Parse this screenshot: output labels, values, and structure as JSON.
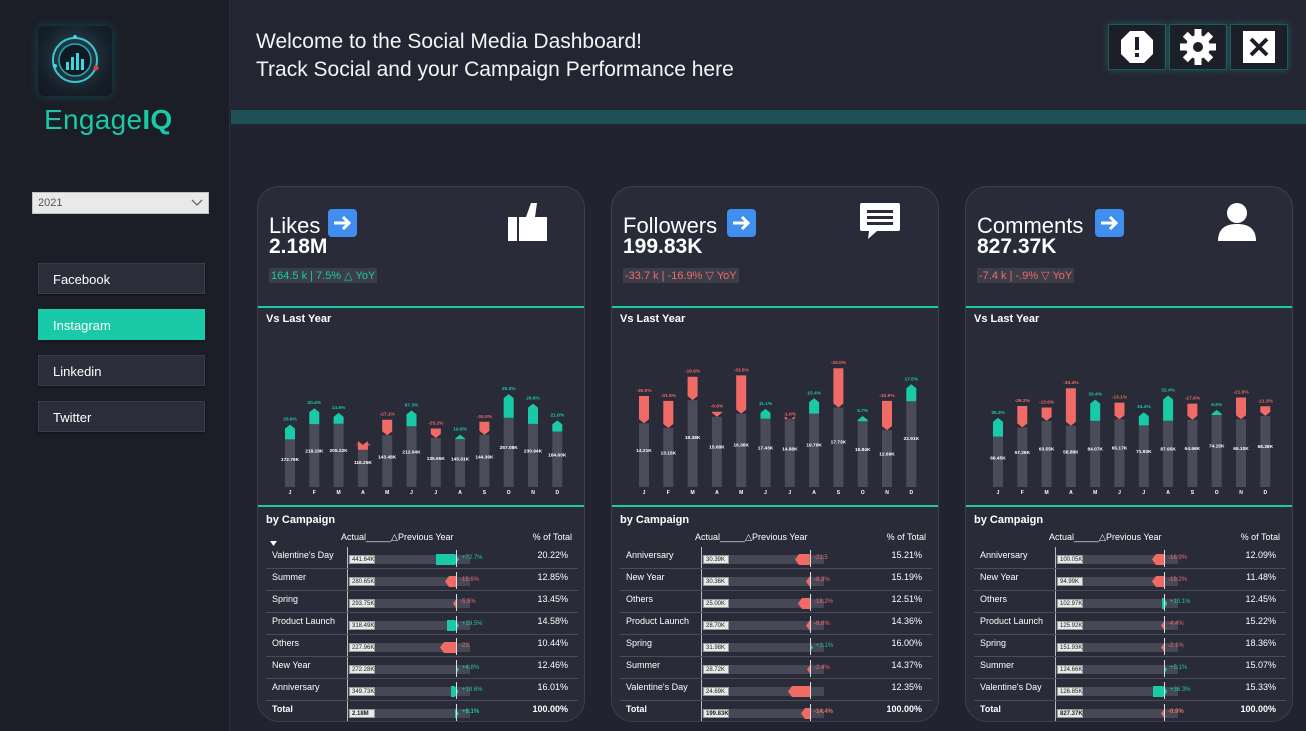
{
  "app": {
    "brand_prefix": "Engage",
    "brand_suffix": "IQ",
    "logo_icon": "analytics-gauge-icon"
  },
  "sidebar": {
    "year_select": {
      "value": "2021"
    },
    "platforms": [
      {
        "label": "Facebook",
        "active": false
      },
      {
        "label": "Instagram",
        "active": true
      },
      {
        "label": "Linkedin",
        "active": false
      },
      {
        "label": "Twitter",
        "active": false
      }
    ]
  },
  "header": {
    "line1": "Welcome to the Social Media Dashboard!",
    "line2": "Track Social and your Campaign Performance here",
    "buttons": [
      {
        "icon": "alert-icon"
      },
      {
        "icon": "gear-icon"
      },
      {
        "icon": "close-icon"
      }
    ]
  },
  "colors": {
    "accent": "#19c9a8",
    "negative": "#f06a66",
    "positive": "#19c9a8",
    "bar_base": "#4a4c59",
    "arrow": "#3f8ef0"
  },
  "cards": [
    {
      "title": "Likes",
      "value": "2.18M",
      "change": "164.5 k | 7.5% △ YoY",
      "change_positive": true,
      "icon": "thumbs-up-icon",
      "vs_title": "Vs Last Year",
      "campaign_title": "by Campaign",
      "table_headers": {
        "actual": "Actual",
        "prev": "△Previous Year",
        "pct": "% of Total"
      },
      "chart_data": {
        "type": "bar",
        "categories": [
          "J",
          "F",
          "M",
          "A",
          "M",
          "J",
          "J",
          "A",
          "S",
          "O",
          "N",
          "D"
        ],
        "series": [
          {
            "values": [
              172.79,
              218.18,
              205.22,
              116.25,
              143.48,
              212.04,
              135.65,
              145.01,
              144.36,
              257.08,
              230.94,
              184.6
            ]
          },
          {
            "values": [
              213.7,
              262.2,
              235.2,
              103.0,
              186.4,
              255.8,
              162.0,
              157.4,
              180.6,
              322.4,
              287.0,
              215.4
            ]
          }
        ],
        "value_labels": [
          "172.79K",
          "218.18K",
          "205.22K",
          "116.25K",
          "143.48K",
          "212.04K",
          "135.65K",
          "145.01K",
          "144.36K",
          "257.08K",
          "230.94K",
          "184.60K"
        ],
        "delta_labels": [
          "20.9%",
          "20.4%",
          "14.6%",
          "-11.4%",
          "-27.1%",
          "67.3%",
          "-25.2%",
          "19.8%",
          "-24.0%",
          "25.3%",
          "29.8%",
          "21.8%"
        ],
        "delta_positive": [
          true,
          true,
          true,
          false,
          false,
          true,
          false,
          true,
          false,
          true,
          true,
          true
        ],
        "ylim": [
          0,
          360
        ]
      },
      "campaigns": [
        {
          "name": "Valentine's Day",
          "actual": "441.64K",
          "delta": "+72.7%",
          "pct": "20.22%",
          "pos": true,
          "size": 0.42
        },
        {
          "name": "Summer",
          "actual": "280.65K",
          "delta": "-15.6%",
          "pct": "12.85%",
          "pos": false,
          "size": 0.2
        },
        {
          "name": "Spring",
          "actual": "293.75K",
          "delta": "-5.5%",
          "pct": "13.45%",
          "pos": false,
          "size": 0.06
        },
        {
          "name": "Product Launch",
          "actual": "318.49K",
          "delta": "+29.5%",
          "pct": "14.58%",
          "pos": true,
          "size": 0.22
        },
        {
          "name": "Others",
          "actual": "227.96K",
          "delta": "-23.",
          "pct": "10.44%",
          "pos": false,
          "size": 0.3
        },
        {
          "name": "New Year",
          "actual": "272.28K",
          "delta": "+4.8%",
          "pct": "12.46%",
          "pos": true,
          "size": 0.04
        },
        {
          "name": "Anniversary",
          "actual": "349.73K",
          "delta": "+18.6%",
          "pct": "16.01%",
          "pos": true,
          "size": 0.14
        },
        {
          "name": "Total",
          "actual": "2.18M",
          "delta": "+8.1%",
          "pct": "100.00%",
          "pos": true,
          "size": 0.07,
          "total": true
        }
      ]
    },
    {
      "title": "Followers",
      "value": "199.83K",
      "change": "-33.7 k | -16.9% ▽ YoY",
      "change_positive": false,
      "icon": "chat-bubble-icon",
      "vs_title": "Vs Last Year",
      "campaign_title": "by Campaign",
      "table_headers": {
        "actual": "Actual",
        "prev": "△Previous Year",
        "pct": "% of Total"
      },
      "chart_data": {
        "type": "bar",
        "categories": [
          "J",
          "F",
          "M",
          "A",
          "M",
          "J",
          "J",
          "A",
          "S",
          "O",
          "N",
          "D"
        ],
        "series": [
          {
            "values": [
              14.21,
              13.15,
              19.38,
              15.68,
              16.36,
              17.43,
              14.88,
              19.79,
              17.73,
              15.84,
              12.69,
              22.91
            ]
          },
          {
            "values": [
              20.3,
              19.2,
              24.6,
              16.8,
              24.9,
              19.6,
              15.1,
              23.2,
              26.5,
              17.0,
              19.2,
              26.7
            ]
          }
        ],
        "value_labels": [
          "14.21K",
          "13.15K",
          "19.38K",
          "15.68K",
          "16.36K",
          "17.43K",
          "14.88K",
          "19.79K",
          "17.73K",
          "15.84K",
          "12.69K",
          "22.91K"
        ],
        "delta_labels": [
          "-30.0%",
          "-31.5%",
          "-19.6%",
          "-6.6%",
          "-33.5%",
          "11.1%",
          "-1.6%",
          "15.4%",
          "-33.0%",
          "6.7%",
          "-32.9%",
          "17.5%"
        ],
        "delta_positive": [
          false,
          false,
          false,
          false,
          false,
          true,
          false,
          true,
          false,
          true,
          false,
          true
        ],
        "ylim": [
          0,
          29
        ]
      },
      "campaigns": [
        {
          "name": "Anniversary",
          "actual": "30.39K",
          "delta": "-21.5",
          "pct": "15.21%",
          "pos": false,
          "size": 0.27
        },
        {
          "name": "New Year",
          "actual": "30.36K",
          "delta": "-8.3%",
          "pct": "15.19%",
          "pos": false,
          "size": 0.08
        },
        {
          "name": "Others",
          "actual": "25.00K",
          "delta": "-18.2%",
          "pct": "12.51%",
          "pos": false,
          "size": 0.22
        },
        {
          "name": "Product Launch",
          "actual": "28.70K",
          "delta": "-6.8%",
          "pct": "14.36%",
          "pos": false,
          "size": 0.08
        },
        {
          "name": "Spring",
          "actual": "31.98K",
          "delta": "+1.1%",
          "pct": "16.00%",
          "pos": true,
          "size": 0.02
        },
        {
          "name": "Summer",
          "actual": "28.72K",
          "delta": "-2.4%",
          "pct": "14.37%",
          "pos": false,
          "size": 0.03
        },
        {
          "name": "Valentine's Day",
          "actual": "24.69K",
          "delta": "",
          "pct": "12.35%",
          "pos": false,
          "size": 0.4
        },
        {
          "name": "Total",
          "actual": "199.83K",
          "delta": "-14.4%",
          "pct": "100.00%",
          "pos": false,
          "size": 0.17,
          "total": true
        }
      ]
    },
    {
      "title": "Comments",
      "value": "827.37K",
      "change": "-7.4 k | -.9% ▽ YoY",
      "change_positive": false,
      "icon": "user-icon",
      "vs_title": "Vs Last Year",
      "campaign_title": "by Campaign",
      "table_headers": {
        "actual": "Actual",
        "prev": "△Previous Year",
        "pct": "% of Total"
      },
      "chart_data": {
        "type": "bar",
        "categories": [
          "J",
          "F",
          "M",
          "A",
          "M",
          "J",
          "J",
          "A",
          "S",
          "O",
          "N",
          "D"
        ],
        "series": [
          {
            "values": [
              66.45,
              57.28,
              63.55,
              58.88,
              84.07,
              65.17,
              71.93,
              87.95,
              64.66,
              74.15,
              65.1,
              68.38
            ]
          },
          {
            "values": [
              84.5,
              77.9,
              76.4,
              95.0,
              104.6,
              81.1,
              84.6,
              112.2,
              80.2,
              79.1,
              86.0,
              77.6
            ]
          }
        ],
        "value_labels": [
          "66.45K",
          "57.28K",
          "63.55K",
          "58.88K",
          "84.07K",
          "65.17K",
          "71.93K",
          "87.95K",
          "64.66K",
          "74.15K",
          "65.10K",
          "68.38K"
        ],
        "delta_labels": [
          "30.3%",
          "-26.2%",
          "-13.6%",
          "-33.4%",
          "33.4%",
          "-13.1%",
          "34.4%",
          "32.4%",
          "-17.6%",
          "6.6%",
          "-21.5%",
          "-11.3%"
        ],
        "delta_positive": [
          true,
          false,
          false,
          false,
          true,
          false,
          true,
          true,
          false,
          true,
          false,
          false
        ],
        "ylim": [
          0,
          125
        ]
      },
      "campaigns": [
        {
          "name": "Anniversary",
          "actual": "100.05K",
          "delta": "-16.9%",
          "pct": "12.09%",
          "pos": false,
          "size": 0.22
        },
        {
          "name": "New Year",
          "actual": "94.99K",
          "delta": "-19.2%",
          "pct": "11.48%",
          "pos": false,
          "size": 0.22
        },
        {
          "name": "Others",
          "actual": "102.97K",
          "delta": "+10.1%",
          "pct": "12.45%",
          "pos": true,
          "size": 0.1
        },
        {
          "name": "Product Launch",
          "actual": "125.92K",
          "delta": "-4.4%",
          "pct": "15.22%",
          "pos": false,
          "size": 0.05
        },
        {
          "name": "Spring",
          "actual": "151.93K",
          "delta": "-2.1%",
          "pct": "18.36%",
          "pos": false,
          "size": 0.03
        },
        {
          "name": "Summer",
          "actual": "124.66K",
          "delta": "+5.1%",
          "pct": "15.07%",
          "pos": true,
          "size": 0.05
        },
        {
          "name": "Valentine's Day",
          "actual": "126.85K",
          "delta": "+36.3%",
          "pct": "15.33%",
          "pos": true,
          "size": 0.26
        },
        {
          "name": "Total",
          "actual": "827.37K",
          "delta": "-0.9%",
          "pct": "100.00%",
          "pos": false,
          "size": 0.01,
          "total": true
        }
      ]
    }
  ]
}
